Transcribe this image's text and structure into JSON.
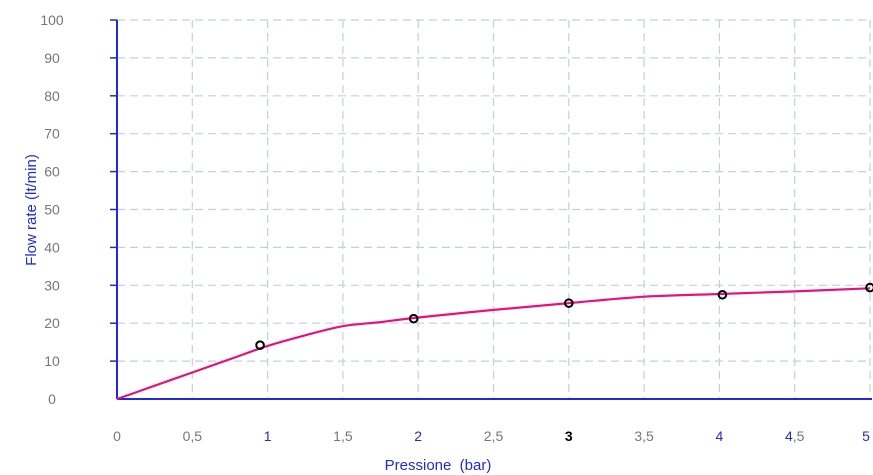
{
  "chart_data": {
    "type": "line",
    "title": "",
    "xlabel": "Pressione  (bar)",
    "ylabel": "Flow rate (lt/min)",
    "xlim": [
      0,
      5
    ],
    "ylim": [
      0,
      100
    ],
    "grid": true,
    "x_ticks": [
      "0",
      "0,5",
      "1",
      "1,5",
      "2",
      "2,5",
      "3",
      "3,5",
      "4",
      "4,5",
      "5"
    ],
    "y_ticks": [
      "0",
      "10",
      "20",
      "30",
      "40",
      "50",
      "60",
      "70",
      "80",
      "90",
      "100"
    ],
    "series": [
      {
        "curve_x": [
          0,
          0.25,
          0.5,
          0.75,
          1.0,
          1.25,
          1.5,
          1.75,
          2.0,
          2.5,
          3.0,
          3.5,
          4.0,
          4.5,
          5.0
        ],
        "curve_y": [
          0,
          3.5,
          7,
          10.5,
          14,
          16.8,
          19.2,
          20.3,
          21.5,
          23.5,
          25.3,
          27.0,
          27.7,
          28.4,
          29.2
        ],
        "marker_x": [
          0.95,
          1.97,
          3.0,
          4.02,
          5.0
        ],
        "marker_y": [
          14.2,
          21.2,
          25.3,
          27.5,
          29.4
        ]
      }
    ],
    "colors": {
      "curve": "#e8117f",
      "axis": "#1f2bd6",
      "grid": "#c5cde8",
      "tick_text": "#777777",
      "tick_highlight_blue": "#1f2bd6",
      "tick_highlight_bold": "#000000",
      "marker": "#000000"
    }
  }
}
